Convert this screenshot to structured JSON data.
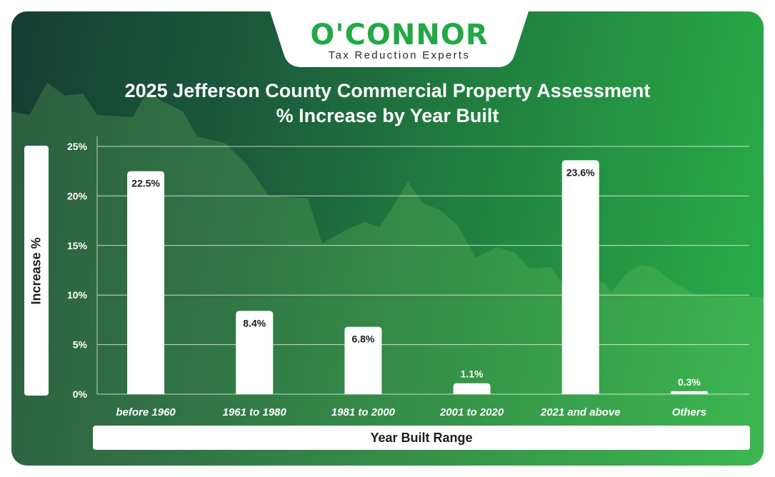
{
  "brand": {
    "name": "O'CONNOR",
    "tagline": "Tax Reduction Experts"
  },
  "chart_data": {
    "type": "bar",
    "title": "2025 Jefferson County Commercial Property Assessment\n% Increase by Year Built",
    "xlabel": "Year Built Range",
    "ylabel": "Increase %",
    "categories": [
      "before 1960",
      "1961 to 1980",
      "1981 to 2000",
      "2001 to 2020",
      "2021 and above",
      "Others"
    ],
    "values": [
      22.5,
      8.4,
      6.8,
      1.1,
      23.6,
      0.3
    ],
    "value_labels": [
      "22.5%",
      "8.4%",
      "6.8%",
      "1.1%",
      "23.6%",
      "0.3%"
    ],
    "yticks": [
      "0%",
      "5%",
      "10%",
      "15%",
      "20%",
      "25%"
    ],
    "ylim": [
      0,
      25
    ],
    "grid": true,
    "legend": "none",
    "bar_color": "#ffffff",
    "background_colors": [
      "#163d33",
      "#2ab04a"
    ]
  }
}
